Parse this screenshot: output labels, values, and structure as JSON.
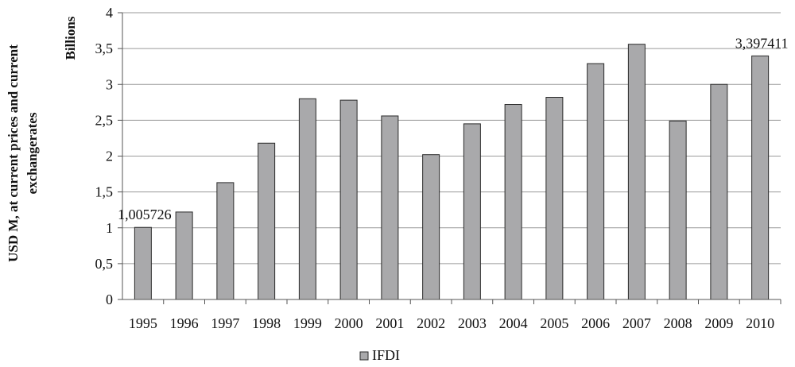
{
  "chart_data": {
    "type": "bar",
    "units_label": "Billions",
    "ylabel_lines": [
      "USD M, at current prices and current",
      "exchangerates"
    ],
    "xlabel": "",
    "categories": [
      "1995",
      "1996",
      "1997",
      "1998",
      "1999",
      "2000",
      "2001",
      "2002",
      "2003",
      "2004",
      "2005",
      "2006",
      "2007",
      "2008",
      "2009",
      "2010"
    ],
    "series": [
      {
        "name": "IFDI",
        "values": [
          1.005726,
          1.22,
          1.63,
          2.18,
          2.8,
          2.78,
          2.56,
          2.02,
          2.45,
          2.72,
          2.82,
          3.29,
          3.56,
          2.49,
          3.0,
          3.397411
        ]
      }
    ],
    "yticks": [
      0,
      0.5,
      1,
      1.5,
      2,
      2.5,
      3,
      3.5,
      4
    ],
    "ytick_labels": [
      "0",
      "0,5",
      "1",
      "1,5",
      "2",
      "2,5",
      "3",
      "3,5",
      "4"
    ],
    "ylim": [
      0,
      4
    ],
    "data_labels": [
      {
        "category_index": 0,
        "text": "1,005726"
      },
      {
        "category_index": 15,
        "text": "3,397411"
      }
    ],
    "grid": true,
    "legend": {
      "placement": "bottom",
      "items": [
        "IFDI"
      ]
    },
    "colors": {
      "bar_fill": "#a9a9ab",
      "bar_stroke": "#2b2b2b",
      "grid": "#9a9a9a",
      "axis": "#555555"
    }
  }
}
